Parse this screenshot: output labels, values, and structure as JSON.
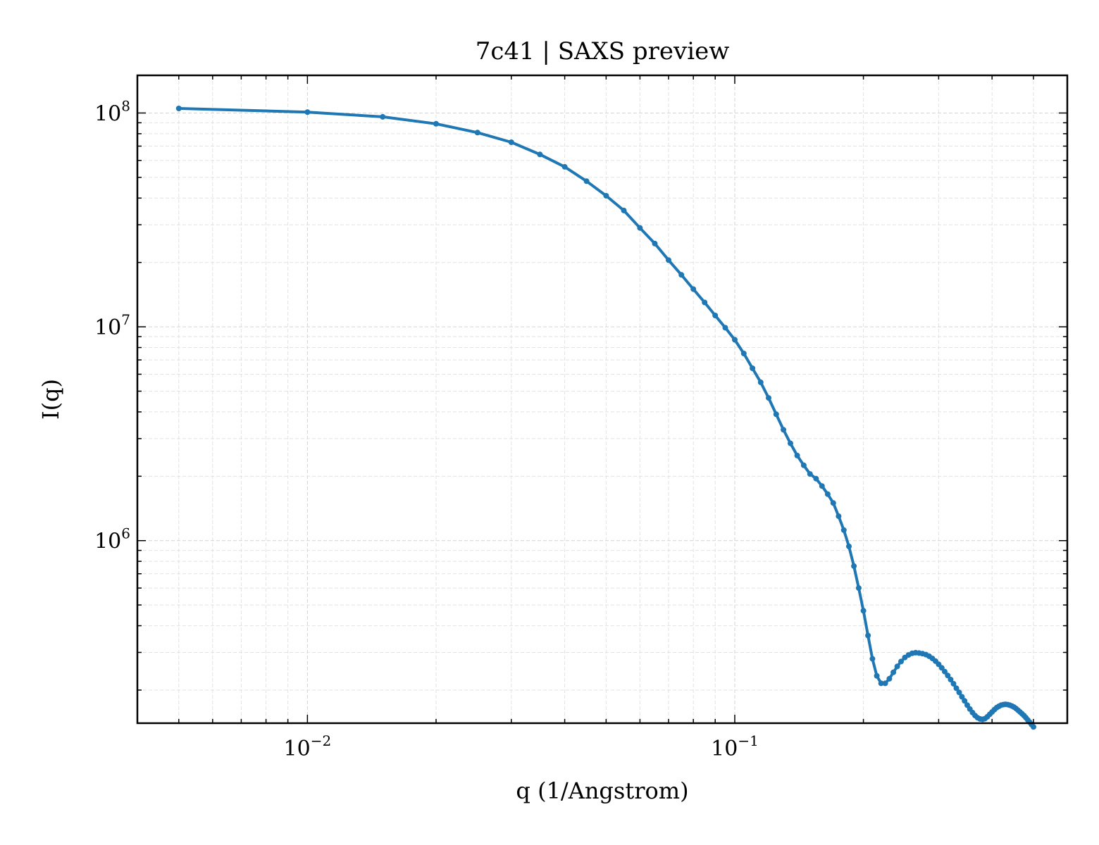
{
  "chart_data": {
    "type": "line",
    "title": "7c41 | SAXS preview",
    "xlabel": "q (1/Angstrom)",
    "ylabel": "I(q)",
    "x_scale": "log",
    "y_scale": "log",
    "xlim": [
      0.004,
      0.6
    ],
    "ylim": [
      140000,
      150000000
    ],
    "grid": true,
    "legend": "none",
    "x_ticks": [
      {
        "value": 0.01,
        "base": "10",
        "exp": "−2"
      },
      {
        "value": 0.1,
        "base": "10",
        "exp": "−1"
      }
    ],
    "y_ticks": [
      {
        "value": 1000000,
        "base": "10",
        "exp": "6"
      },
      {
        "value": 10000000,
        "base": "10",
        "exp": "7"
      },
      {
        "value": 100000000,
        "base": "10",
        "exp": "8"
      }
    ],
    "series": [
      {
        "color": "#1f77b4",
        "marker": "circle",
        "x": [
          0.005,
          0.01,
          0.015,
          0.02,
          0.025,
          0.03,
          0.035,
          0.04,
          0.045,
          0.05,
          0.055,
          0.06,
          0.065,
          0.07,
          0.075,
          0.08,
          0.085,
          0.09,
          0.095,
          0.1,
          0.105,
          0.11,
          0.115,
          0.12,
          0.125,
          0.13,
          0.135,
          0.14,
          0.145,
          0.15,
          0.155,
          0.16,
          0.165,
          0.17,
          0.175,
          0.18,
          0.185,
          0.19,
          0.195,
          0.2,
          0.205,
          0.21,
          0.215,
          0.22,
          0.225,
          0.23,
          0.235,
          0.24,
          0.245,
          0.25,
          0.255,
          0.26,
          0.265,
          0.27,
          0.275,
          0.28,
          0.285,
          0.29,
          0.295,
          0.3,
          0.305,
          0.31,
          0.315,
          0.32,
          0.325,
          0.33,
          0.335,
          0.34,
          0.345,
          0.35,
          0.355,
          0.36,
          0.365,
          0.37,
          0.375,
          0.38,
          0.385,
          0.39,
          0.395,
          0.4,
          0.405,
          0.41,
          0.415,
          0.42,
          0.425,
          0.43,
          0.435,
          0.44,
          0.445,
          0.45,
          0.455,
          0.46,
          0.465,
          0.47,
          0.475,
          0.48,
          0.485,
          0.49,
          0.495,
          0.5
        ],
        "y": [
          105000000,
          101000000,
          96000000,
          89000000,
          81000000,
          73000000,
          64000000,
          56000000,
          48000000,
          41000000,
          35000000,
          29000000,
          24500000,
          20500000,
          17500000,
          15000000,
          13000000,
          11300000,
          9900000,
          8700000,
          7500000,
          6400000,
          5500000,
          4650000,
          3900000,
          3300000,
          2850000,
          2500000,
          2250000,
          2050000,
          1950000,
          1800000,
          1650000,
          1500000,
          1300000,
          1120000,
          940000,
          760000,
          600000,
          470000,
          360000,
          280000,
          233000,
          215000,
          215000,
          226000,
          242000,
          258000,
          272000,
          284000,
          292000,
          297000,
          299000,
          298000,
          296000,
          293000,
          288000,
          281000,
          273000,
          264000,
          254000,
          244000,
          234000,
          224000,
          214000,
          204000,
          195000,
          186000,
          178000,
          170000,
          163000,
          157000,
          152000,
          148500,
          146500,
          146000,
          147000,
          150000,
          154000,
          158000,
          162000,
          165500,
          168000,
          170000,
          171000,
          171500,
          171000,
          170000,
          168500,
          166500,
          164000,
          161000,
          158000,
          155000,
          152000,
          148500,
          145000,
          141500,
          138000,
          134500
        ]
      }
    ]
  }
}
